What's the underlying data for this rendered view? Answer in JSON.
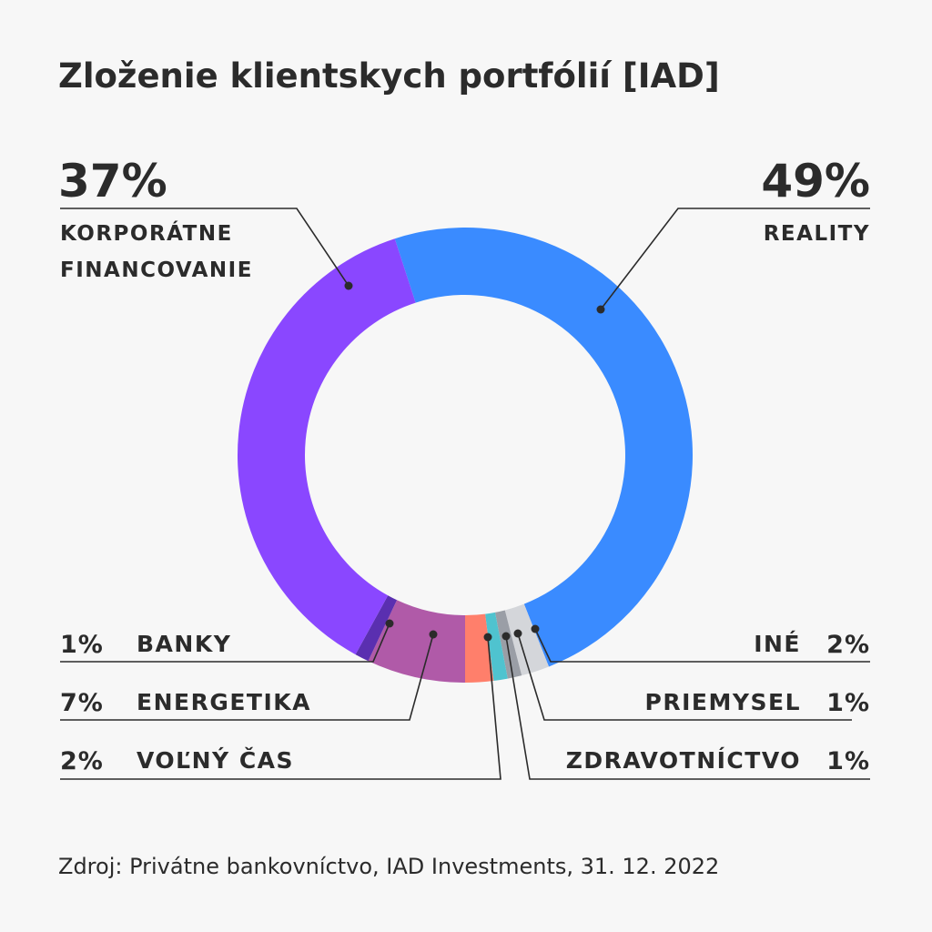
{
  "title": "Zloženie klientskych portfólií [IAD]",
  "source": "Zdroj: Privátne bankovníctvo, IAD Investments, 31. 12. 2022",
  "chart_data": {
    "type": "pie",
    "subtype": "donut",
    "title": "Zloženie klientskych portfólií [IAD]",
    "slices": [
      {
        "label": "REALITY",
        "value": 49,
        "pct_label": "49%",
        "color": "#3a8bff"
      },
      {
        "label": "INÉ",
        "value": 2,
        "pct_label": "2%",
        "color": "#d4d6da"
      },
      {
        "label": "PRIEMYSEL",
        "value": 1,
        "pct_label": "1%",
        "color": "#9a9ea6"
      },
      {
        "label": "ZDRAVOTNÍCTVO",
        "value": 1,
        "pct_label": "1%",
        "color": "#4fc3cf"
      },
      {
        "label": "VOĽNÝ ČAS",
        "value": 2,
        "pct_label": "2%",
        "color": "#ff7f6b"
      },
      {
        "label": "ENERGETIKA",
        "value": 7,
        "pct_label": "7%",
        "color": "#b05aa8"
      },
      {
        "label": "BANKY",
        "value": 1,
        "pct_label": "1%",
        "color": "#5a2fb0"
      },
      {
        "label": "KORPORÁTNE FINANCOVANIE",
        "value": 37,
        "pct_label": "37%",
        "color": "#8a47ff"
      }
    ],
    "labels": {
      "reality": {
        "pct": "49%",
        "name": "REALITY"
      },
      "korporatne": {
        "pct": "37%",
        "line1": "KORPORÁTNE",
        "line2": "FINANCOVANIE"
      },
      "banky": {
        "pct": "1%",
        "name": "BANKY"
      },
      "energetika": {
        "pct": "7%",
        "name": "ENERGETIKA"
      },
      "volny_cas": {
        "pct": "2%",
        "name": "VOĽNÝ ČAS"
      },
      "ine": {
        "pct": "2%",
        "name": "INÉ"
      },
      "priemysel": {
        "pct": "1%",
        "name": "PRIEMYSEL"
      },
      "zdravotnictvo": {
        "pct": "1%",
        "name": "ZDRAVOTNÍCTVO"
      }
    }
  }
}
